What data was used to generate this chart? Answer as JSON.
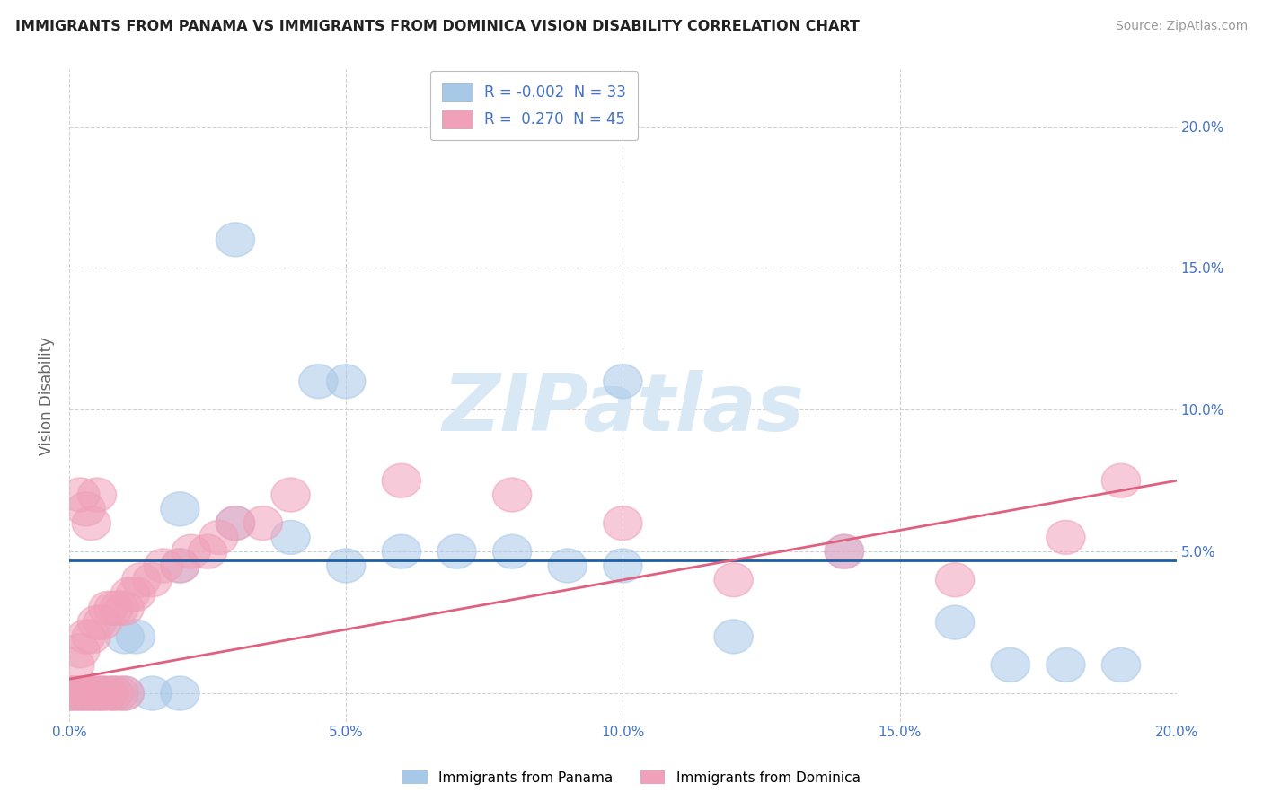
{
  "title": "IMMIGRANTS FROM PANAMA VS IMMIGRANTS FROM DOMINICA VISION DISABILITY CORRELATION CHART",
  "source": "Source: ZipAtlas.com",
  "ylabel": "Vision Disability",
  "legend_labels": [
    "Immigrants from Panama",
    "Immigrants from Dominica"
  ],
  "r_panama": -0.002,
  "n_panama": 33,
  "r_dominica": 0.27,
  "n_dominica": 45,
  "xlim": [
    0.0,
    0.2
  ],
  "ylim": [
    -0.01,
    0.22
  ],
  "color_panama": "#a8c8e8",
  "color_dominica": "#f0a0b8",
  "trendline_panama_color": "#1a5fa8",
  "trendline_dominica_color": "#e06080",
  "watermark": "ZIPatlas",
  "panama_points": [
    [
      0.0,
      0.0
    ],
    [
      0.001,
      0.0
    ],
    [
      0.002,
      0.0
    ],
    [
      0.003,
      0.0
    ],
    [
      0.004,
      0.0
    ],
    [
      0.005,
      0.0
    ],
    [
      0.006,
      0.0
    ],
    [
      0.008,
      0.0
    ],
    [
      0.01,
      0.0
    ],
    [
      0.015,
      0.0
    ],
    [
      0.02,
      0.0
    ],
    [
      0.01,
      0.02
    ],
    [
      0.012,
      0.02
    ],
    [
      0.02,
      0.045
    ],
    [
      0.03,
      0.06
    ],
    [
      0.04,
      0.055
    ],
    [
      0.05,
      0.045
    ],
    [
      0.06,
      0.05
    ],
    [
      0.07,
      0.05
    ],
    [
      0.08,
      0.05
    ],
    [
      0.09,
      0.045
    ],
    [
      0.1,
      0.045
    ],
    [
      0.02,
      0.065
    ],
    [
      0.045,
      0.11
    ],
    [
      0.05,
      0.11
    ],
    [
      0.1,
      0.11
    ],
    [
      0.03,
      0.16
    ],
    [
      0.12,
      0.02
    ],
    [
      0.14,
      0.05
    ],
    [
      0.16,
      0.025
    ],
    [
      0.17,
      0.01
    ],
    [
      0.18,
      0.01
    ],
    [
      0.19,
      0.01
    ]
  ],
  "dominica_points": [
    [
      0.0,
      0.0
    ],
    [
      0.001,
      0.0
    ],
    [
      0.002,
      0.0
    ],
    [
      0.003,
      0.0
    ],
    [
      0.004,
      0.0
    ],
    [
      0.005,
      0.0
    ],
    [
      0.006,
      0.0
    ],
    [
      0.007,
      0.0
    ],
    [
      0.008,
      0.0
    ],
    [
      0.009,
      0.0
    ],
    [
      0.01,
      0.0
    ],
    [
      0.001,
      0.01
    ],
    [
      0.002,
      0.015
    ],
    [
      0.003,
      0.02
    ],
    [
      0.004,
      0.02
    ],
    [
      0.005,
      0.025
    ],
    [
      0.006,
      0.025
    ],
    [
      0.007,
      0.03
    ],
    [
      0.008,
      0.03
    ],
    [
      0.009,
      0.03
    ],
    [
      0.01,
      0.03
    ],
    [
      0.011,
      0.035
    ],
    [
      0.012,
      0.035
    ],
    [
      0.013,
      0.04
    ],
    [
      0.015,
      0.04
    ],
    [
      0.017,
      0.045
    ],
    [
      0.02,
      0.045
    ],
    [
      0.022,
      0.05
    ],
    [
      0.025,
      0.05
    ],
    [
      0.027,
      0.055
    ],
    [
      0.03,
      0.06
    ],
    [
      0.035,
      0.06
    ],
    [
      0.002,
      0.07
    ],
    [
      0.003,
      0.065
    ],
    [
      0.004,
      0.06
    ],
    [
      0.005,
      0.07
    ],
    [
      0.04,
      0.07
    ],
    [
      0.06,
      0.075
    ],
    [
      0.08,
      0.07
    ],
    [
      0.1,
      0.06
    ],
    [
      0.12,
      0.04
    ],
    [
      0.14,
      0.05
    ],
    [
      0.16,
      0.04
    ],
    [
      0.18,
      0.055
    ],
    [
      0.19,
      0.075
    ]
  ],
  "background_color": "#ffffff",
  "grid_color": "#cccccc"
}
